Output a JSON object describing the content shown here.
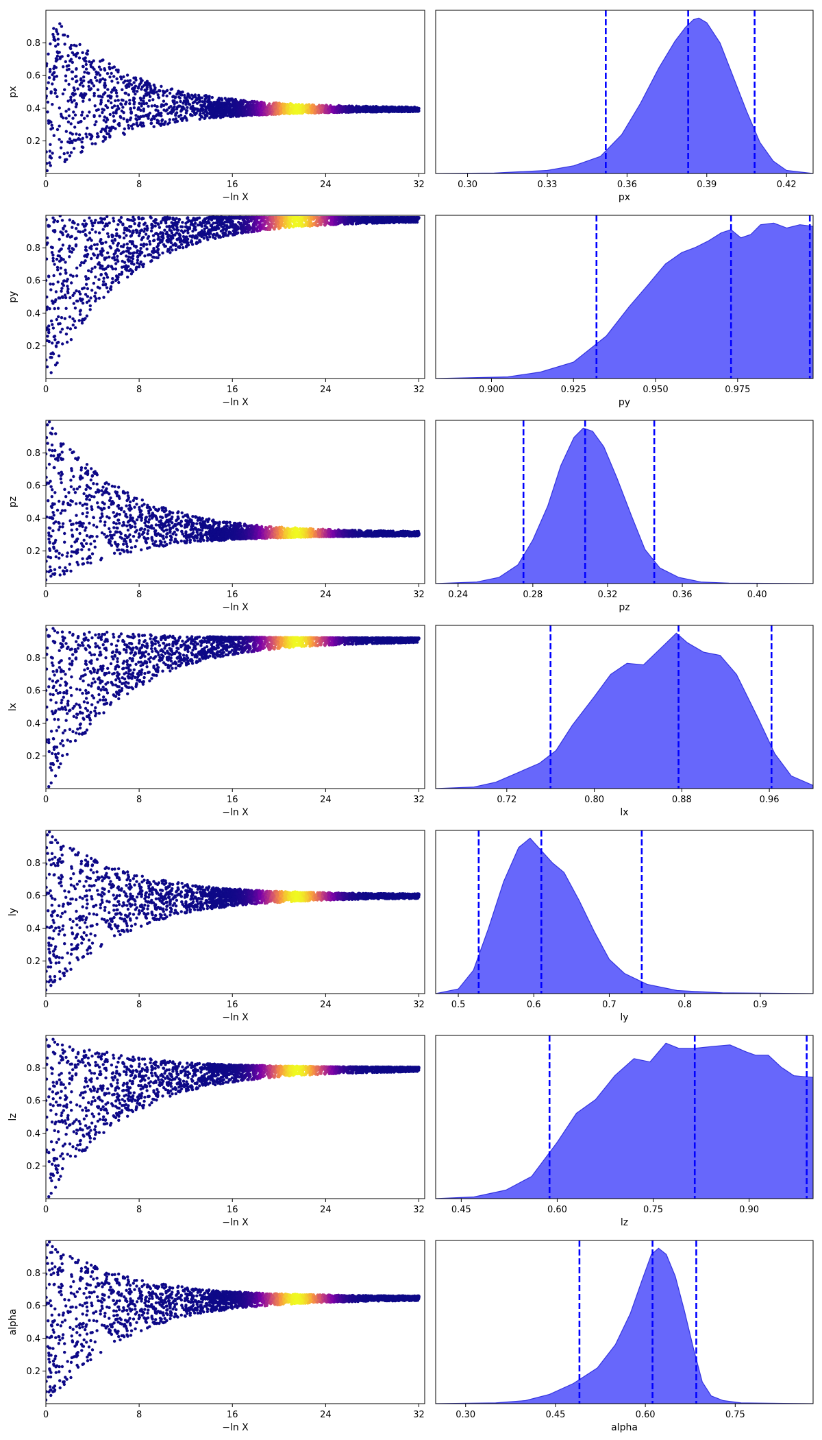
{
  "chart_data": [
    {
      "type": "scatter",
      "panel": "trace",
      "param": "px",
      "xlabel": "−ln X",
      "ylabel": "px",
      "xlim": [
        0,
        32.5
      ],
      "ylim": [
        0,
        1
      ],
      "x_ticks": [
        "0",
        "8",
        "16",
        "24",
        "32"
      ],
      "y_ticks": [
        "0.2",
        "0.4",
        "0.6",
        "0.8"
      ],
      "converge_value": 0.39,
      "x_end": 32,
      "peak_x": 21.5
    },
    {
      "type": "area",
      "panel": "posterior",
      "param": "px",
      "xlabel": "px",
      "xlim": [
        0.288,
        0.43
      ],
      "x_ticks": [
        "0.30",
        "0.33",
        "0.36",
        "0.39",
        "0.42"
      ],
      "quantiles": [
        0.352,
        0.383,
        0.408
      ],
      "density": {
        "x": [
          0.288,
          0.31,
          0.33,
          0.34,
          0.35,
          0.358,
          0.365,
          0.372,
          0.378,
          0.382,
          0.385,
          0.387,
          0.39,
          0.395,
          0.4,
          0.405,
          0.41,
          0.415,
          0.42,
          0.43
        ],
        "y": [
          0,
          0.003,
          0.02,
          0.05,
          0.11,
          0.25,
          0.45,
          0.68,
          0.85,
          0.94,
          0.99,
          1.0,
          0.97,
          0.84,
          0.62,
          0.4,
          0.2,
          0.08,
          0.02,
          0
        ]
      }
    },
    {
      "type": "scatter",
      "panel": "trace",
      "param": "py",
      "xlabel": "−ln X",
      "ylabel": "py",
      "xlim": [
        0,
        32.5
      ],
      "ylim": [
        0,
        1
      ],
      "x_ticks": [
        "0",
        "8",
        "16",
        "24",
        "32"
      ],
      "y_ticks": [
        "0.2",
        "0.4",
        "0.6",
        "0.8"
      ],
      "converge_value": 0.985,
      "x_end": 32,
      "peak_x": 21.5
    },
    {
      "type": "area",
      "panel": "posterior",
      "param": "py",
      "xlabel": "py",
      "xlim": [
        0.883,
        0.998
      ],
      "x_ticks": [
        "0.900",
        "0.925",
        "0.950",
        "0.975"
      ],
      "quantiles": [
        0.932,
        0.973,
        0.997
      ],
      "density": {
        "x": [
          0.883,
          0.905,
          0.915,
          0.925,
          0.935,
          0.942,
          0.948,
          0.953,
          0.958,
          0.962,
          0.966,
          0.97,
          0.973,
          0.976,
          0.979,
          0.982,
          0.986,
          0.99,
          0.994,
          0.998
        ],
        "y": [
          0,
          0.01,
          0.04,
          0.1,
          0.26,
          0.44,
          0.58,
          0.7,
          0.77,
          0.8,
          0.84,
          0.89,
          0.91,
          0.86,
          0.88,
          0.94,
          0.95,
          0.92,
          0.94,
          0.93
        ]
      }
    },
    {
      "type": "scatter",
      "panel": "trace",
      "param": "pz",
      "xlabel": "−ln X",
      "ylabel": "pz",
      "xlim": [
        0,
        32.5
      ],
      "ylim": [
        0,
        1
      ],
      "x_ticks": [
        "0",
        "8",
        "16",
        "24",
        "32"
      ],
      "y_ticks": [
        "0.2",
        "0.4",
        "0.6",
        "0.8"
      ],
      "converge_value": 0.3,
      "x_end": 32,
      "peak_x": 21.5
    },
    {
      "type": "area",
      "panel": "posterior",
      "param": "pz",
      "xlabel": "pz",
      "xlim": [
        0.228,
        0.43
      ],
      "x_ticks": [
        "0.24",
        "0.28",
        "0.32",
        "0.36",
        "0.40"
      ],
      "quantiles": [
        0.275,
        0.308,
        0.345
      ],
      "density": {
        "x": [
          0.228,
          0.25,
          0.262,
          0.272,
          0.28,
          0.288,
          0.295,
          0.302,
          0.307,
          0.312,
          0.318,
          0.325,
          0.333,
          0.34,
          0.348,
          0.358,
          0.37,
          0.385,
          0.43
        ],
        "y": [
          0,
          0.01,
          0.04,
          0.12,
          0.28,
          0.5,
          0.76,
          0.94,
          1.0,
          0.98,
          0.88,
          0.68,
          0.43,
          0.22,
          0.1,
          0.04,
          0.01,
          0.003,
          0
        ]
      }
    },
    {
      "type": "scatter",
      "panel": "trace",
      "param": "lx",
      "xlabel": "−ln X",
      "ylabel": "lx",
      "xlim": [
        0,
        32.5
      ],
      "ylim": [
        0,
        1
      ],
      "x_ticks": [
        "0",
        "8",
        "16",
        "24",
        "32"
      ],
      "y_ticks": [
        "0.2",
        "0.4",
        "0.6",
        "0.8"
      ],
      "converge_value": 0.92,
      "x_end": 32,
      "peak_x": 21.5
    },
    {
      "type": "area",
      "panel": "posterior",
      "param": "lx",
      "xlabel": "lx",
      "xlim": [
        0.655,
        1.0
      ],
      "x_ticks": [
        "0.72",
        "0.80",
        "0.88",
        "0.96"
      ],
      "quantiles": [
        0.76,
        0.877,
        0.962
      ],
      "density": {
        "x": [
          0.655,
          0.69,
          0.71,
          0.73,
          0.75,
          0.765,
          0.78,
          0.8,
          0.815,
          0.83,
          0.845,
          0.86,
          0.875,
          0.885,
          0.9,
          0.915,
          0.93,
          0.95,
          0.965,
          0.98,
          1.0
        ],
        "y": [
          0,
          0.01,
          0.04,
          0.1,
          0.16,
          0.24,
          0.4,
          0.58,
          0.72,
          0.79,
          0.78,
          0.88,
          0.98,
          0.92,
          0.86,
          0.84,
          0.72,
          0.44,
          0.22,
          0.08,
          0.02
        ]
      }
    },
    {
      "type": "scatter",
      "panel": "trace",
      "param": "ly",
      "xlabel": "−ln X",
      "ylabel": "ly",
      "xlim": [
        0,
        32.5
      ],
      "ylim": [
        0,
        1
      ],
      "x_ticks": [
        "0",
        "8",
        "16",
        "24",
        "32"
      ],
      "y_ticks": [
        "0.2",
        "0.4",
        "0.6",
        "0.8"
      ],
      "converge_value": 0.6,
      "x_end": 32,
      "peak_x": 21.5
    },
    {
      "type": "area",
      "panel": "posterior",
      "param": "ly",
      "xlabel": "ly",
      "xlim": [
        0.47,
        0.97
      ],
      "x_ticks": [
        "0.5",
        "0.6",
        "0.7",
        "0.8",
        "0.9"
      ],
      "quantiles": [
        0.527,
        0.61,
        0.743
      ],
      "density": {
        "x": [
          0.47,
          0.5,
          0.52,
          0.54,
          0.56,
          0.58,
          0.595,
          0.61,
          0.625,
          0.64,
          0.66,
          0.68,
          0.7,
          0.72,
          0.75,
          0.79,
          0.85,
          0.97
        ],
        "y": [
          0,
          0.03,
          0.15,
          0.42,
          0.72,
          0.94,
          1.0,
          0.92,
          0.84,
          0.78,
          0.6,
          0.4,
          0.22,
          0.13,
          0.06,
          0.02,
          0.005,
          0
        ]
      }
    },
    {
      "type": "scatter",
      "panel": "trace",
      "param": "lz",
      "xlabel": "−ln X",
      "ylabel": "lz",
      "xlim": [
        0,
        32.5
      ],
      "ylim": [
        0,
        1
      ],
      "x_ticks": [
        "0",
        "8",
        "16",
        "24",
        "32"
      ],
      "y_ticks": [
        "0.2",
        "0.4",
        "0.6",
        "0.8"
      ],
      "converge_value": 0.8,
      "x_end": 32,
      "peak_x": 21.5
    },
    {
      "type": "area",
      "panel": "posterior",
      "param": "lz",
      "xlabel": "lz",
      "xlim": [
        0.41,
        1.0
      ],
      "x_ticks": [
        "0.45",
        "0.60",
        "0.75",
        "0.90"
      ],
      "quantiles": [
        0.588,
        0.815,
        0.99
      ],
      "density": {
        "x": [
          0.41,
          0.47,
          0.52,
          0.56,
          0.6,
          0.63,
          0.66,
          0.69,
          0.72,
          0.745,
          0.77,
          0.79,
          0.815,
          0.84,
          0.87,
          0.895,
          0.91,
          0.93,
          0.95,
          0.97,
          1.0
        ],
        "y": [
          0,
          0.01,
          0.05,
          0.13,
          0.33,
          0.5,
          0.58,
          0.72,
          0.82,
          0.8,
          0.91,
          0.88,
          0.88,
          0.89,
          0.9,
          0.86,
          0.84,
          0.84,
          0.77,
          0.72,
          0.71
        ]
      }
    },
    {
      "type": "scatter",
      "panel": "trace",
      "param": "alpha",
      "xlabel": "−ln X",
      "ylabel": "alpha",
      "xlim": [
        0,
        32.5
      ],
      "ylim": [
        0,
        1
      ],
      "x_ticks": [
        "0",
        "8",
        "16",
        "24",
        "32"
      ],
      "y_ticks": [
        "0.2",
        "0.4",
        "0.6",
        "0.8"
      ],
      "converge_value": 0.65,
      "x_end": 32,
      "peak_x": 21.5
    },
    {
      "type": "area",
      "panel": "posterior",
      "param": "alpha",
      "xlabel": "alpha",
      "xlim": [
        0.25,
        0.88
      ],
      "x_ticks": [
        "0.30",
        "0.45",
        "0.60",
        "0.75"
      ],
      "quantiles": [
        0.49,
        0.612,
        0.685
      ],
      "density": {
        "x": [
          0.25,
          0.35,
          0.4,
          0.44,
          0.48,
          0.52,
          0.55,
          0.575,
          0.595,
          0.61,
          0.622,
          0.635,
          0.65,
          0.665,
          0.68,
          0.695,
          0.71,
          0.73,
          0.76,
          0.88
        ],
        "y": [
          0,
          0.005,
          0.02,
          0.06,
          0.13,
          0.23,
          0.38,
          0.58,
          0.8,
          0.96,
          1.0,
          0.96,
          0.82,
          0.6,
          0.36,
          0.14,
          0.05,
          0.02,
          0.005,
          0
        ]
      }
    }
  ]
}
